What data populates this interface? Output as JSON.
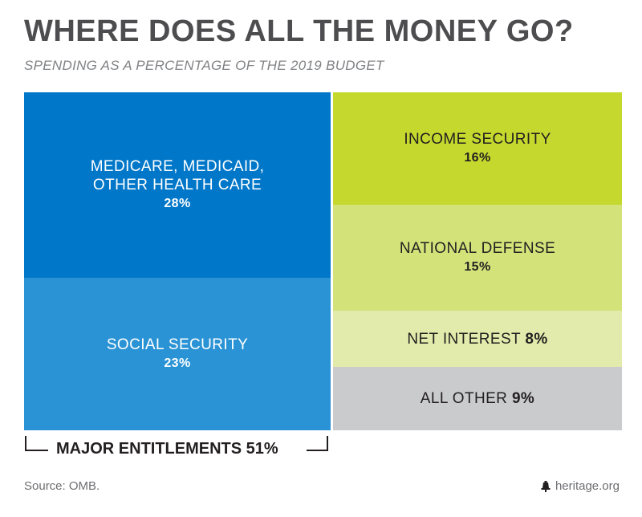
{
  "title": "WHERE DOES ALL THE MONEY GO?",
  "subtitle": "SPENDING AS A PERCENTAGE OF THE 2019 BUDGET",
  "chart_data": {
    "type": "treemap",
    "title": "WHERE DOES ALL THE MONEY GO?",
    "subtitle": "SPENDING AS A PERCENTAGE OF THE 2019 BUDGET",
    "items": [
      {
        "label_lines": [
          "MEDICARE, MEDICAID,",
          "OTHER HEALTH CARE"
        ],
        "pct_text": "28%",
        "value": 28,
        "color": "#0077c8",
        "group": "major-entitlements"
      },
      {
        "label_lines": [
          "SOCIAL SECURITY"
        ],
        "pct_text": "23%",
        "value": 23,
        "color": "#2a93d5",
        "group": "major-entitlements"
      },
      {
        "label_lines": [
          "INCOME SECURITY"
        ],
        "pct_text": "16%",
        "value": 16,
        "color": "#c4d82e"
      },
      {
        "label_lines": [
          "NATIONAL DEFENSE"
        ],
        "pct_text": "15%",
        "value": 15,
        "color": "#d4e27a"
      },
      {
        "label_lines": [
          "NET INTEREST"
        ],
        "pct_text": "8%",
        "value": 8,
        "color": "#e2ebab",
        "inline": true
      },
      {
        "label_lines": [
          "ALL OTHER"
        ],
        "pct_text": "9%",
        "value": 9,
        "color": "#c9cbcd",
        "inline": true
      }
    ],
    "bracket": {
      "label": "MAJOR ENTITLEMENTS 51%",
      "value": 51
    }
  },
  "source": "Source: OMB.",
  "brand": {
    "text": "heritage.org",
    "icon": "liberty-bell-icon"
  }
}
